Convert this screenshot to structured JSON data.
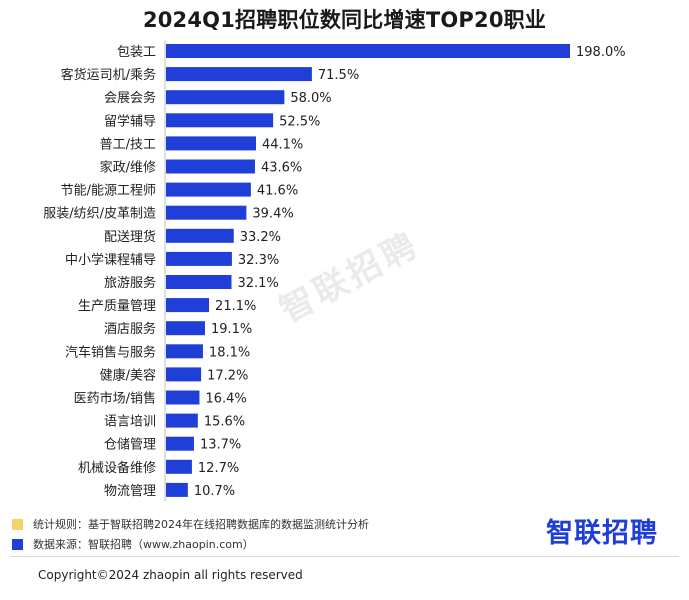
{
  "title": "2024Q1招聘职位数同比增速TOP20职业",
  "chart_data": {
    "type": "bar",
    "orientation": "horizontal",
    "title": "2024Q1招聘职位数同比增速TOP20职业",
    "categories": [
      "包装工",
      "客货运司机/乘务",
      "会展会务",
      "留学辅导",
      "普工/技工",
      "家政/维修",
      "节能/能源工程师",
      "服装/纺织/皮革制造",
      "配送理货",
      "中小学课程辅导",
      "旅游服务",
      "生产质量管理",
      "酒店服务",
      "汽车销售与服务",
      "健康/美容",
      "医药市场/销售",
      "语言培训",
      "仓储管理",
      "机械设备维修",
      "物流管理"
    ],
    "values": [
      198.0,
      71.5,
      58.0,
      52.5,
      44.1,
      43.6,
      41.6,
      39.4,
      33.2,
      32.3,
      32.1,
      21.1,
      19.1,
      18.1,
      17.2,
      16.4,
      15.6,
      13.7,
      12.7,
      10.7
    ],
    "value_labels": [
      "198.0%",
      "71.5%",
      "58.0%",
      "52.5%",
      "44.1%",
      "43.6%",
      "41.6%",
      "39.4%",
      "33.2%",
      "32.3%",
      "32.1%",
      "21.1%",
      "19.1%",
      "18.1%",
      "17.2%",
      "16.4%",
      "15.6%",
      "13.7%",
      "12.7%",
      "10.7%"
    ],
    "xlim": [
      0,
      198.0
    ],
    "grid": false,
    "bar_color": "#1f3fd8"
  },
  "watermark": "智联招聘",
  "notes": [
    {
      "text": "统计规则：基于智联招聘2024年在线招聘数据库的数据监测统计分析",
      "color": "#f7d26b"
    },
    {
      "text": "数据来源：智联招聘（www.zhaopin.com）",
      "color": "#1f3fd8"
    }
  ],
  "brand": {
    "name": "智联招聘",
    "color": "#1f3fd8"
  },
  "copyright": "Copyright©2024 zhaopin all rights reserved"
}
